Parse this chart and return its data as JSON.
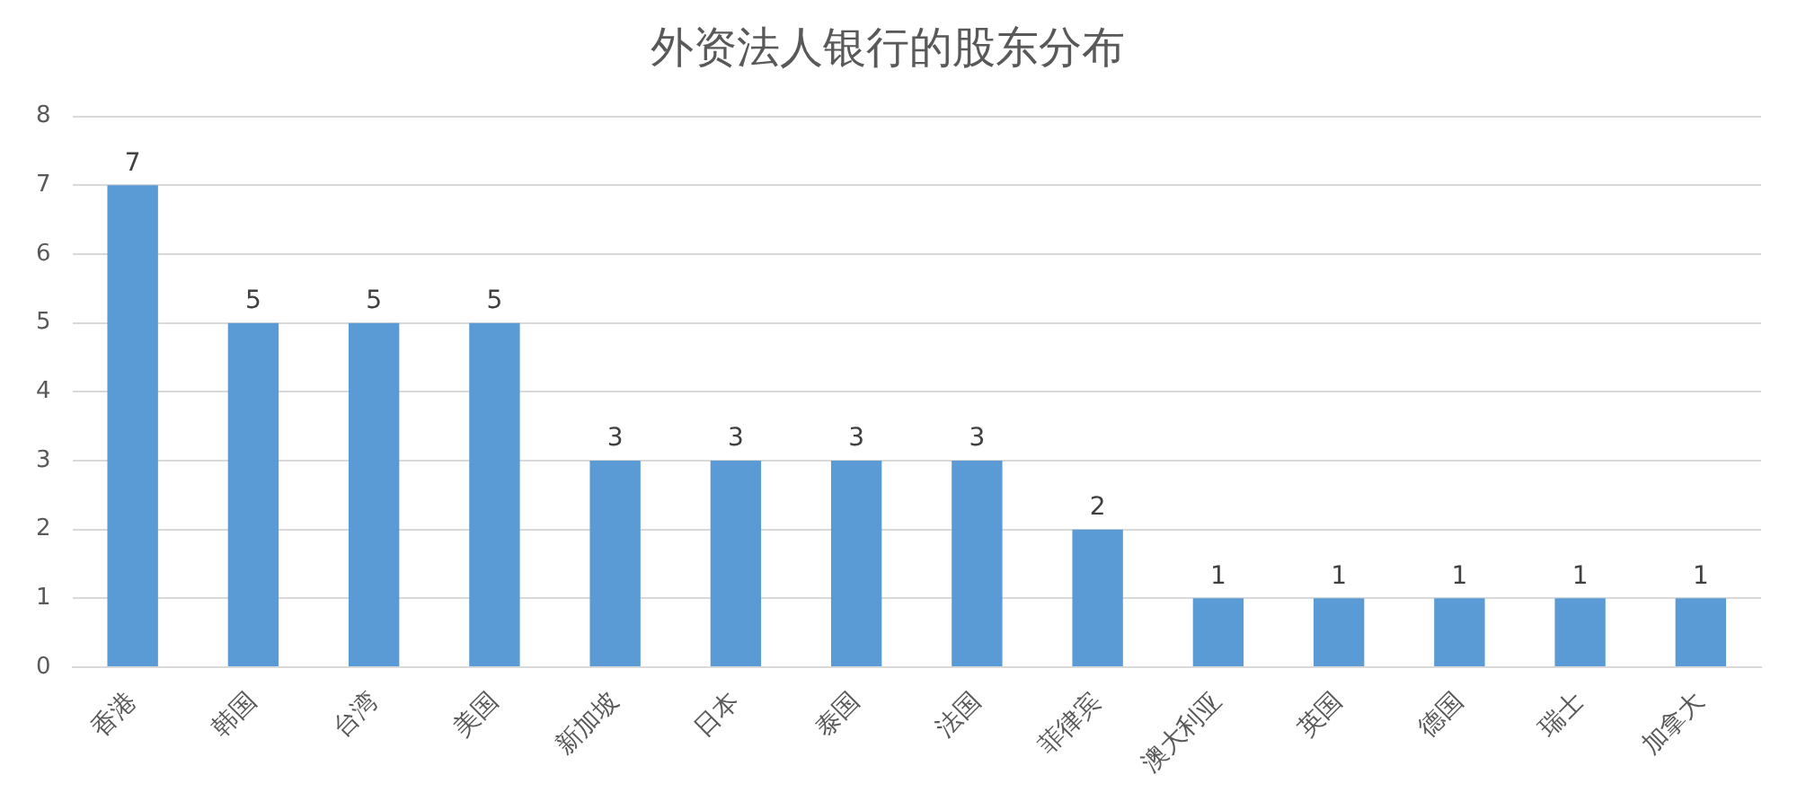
{
  "chart_data": {
    "type": "bar",
    "title": "外资法人银行的股东分布",
    "categories": [
      "香港",
      "韩国",
      "台湾",
      "美国",
      "新加坡",
      "日本",
      "泰国",
      "法国",
      "菲律宾",
      "澳大利亚",
      "英国",
      "德国",
      "瑞士",
      "加拿大"
    ],
    "values": [
      7,
      5,
      5,
      5,
      3,
      3,
      3,
      3,
      2,
      1,
      1,
      1,
      1,
      1
    ],
    "color": "#5b9bd5",
    "ylim": [
      0,
      8
    ],
    "yticks": [
      0,
      1,
      2,
      3,
      4,
      5,
      6,
      7,
      8
    ],
    "grid": "y",
    "data_labels": true
  }
}
